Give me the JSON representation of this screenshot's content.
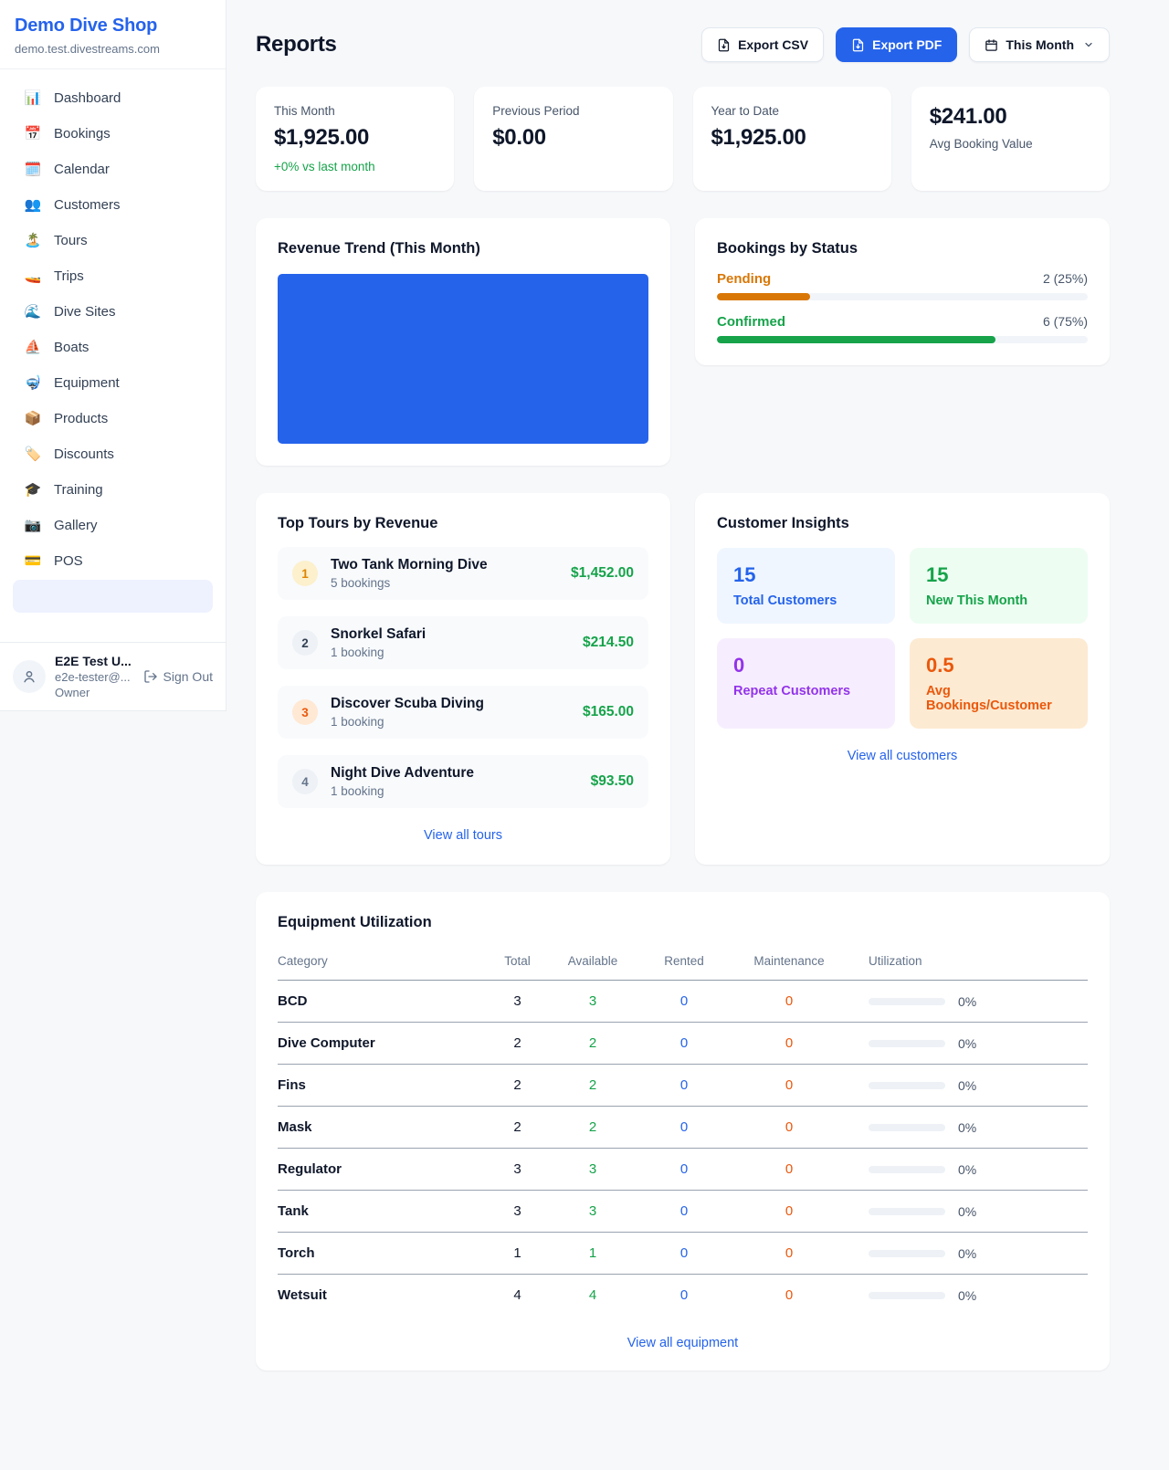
{
  "sidebar": {
    "shop_name": "Demo Dive Shop",
    "shop_domain": "demo.test.divestreams.com",
    "items": [
      {
        "label": "Dashboard",
        "icon": "📊",
        "item_name": "sidebar-item-dashboard",
        "icon_name": "bar-chart-icon"
      },
      {
        "label": "Bookings",
        "icon": "📅",
        "item_name": "sidebar-item-bookings",
        "icon_name": "calendar-date-icon"
      },
      {
        "label": "Calendar",
        "icon": "🗓️",
        "item_name": "sidebar-item-calendar",
        "icon_name": "calendar-icon"
      },
      {
        "label": "Customers",
        "icon": "👥",
        "item_name": "sidebar-item-customers",
        "icon_name": "people-icon"
      },
      {
        "label": "Tours",
        "icon": "🏝️",
        "item_name": "sidebar-item-tours",
        "icon_name": "island-icon"
      },
      {
        "label": "Trips",
        "icon": "🚤",
        "item_name": "sidebar-item-trips",
        "icon_name": "speedboat-icon"
      },
      {
        "label": "Dive Sites",
        "icon": "🌊",
        "item_name": "sidebar-item-dive-sites",
        "icon_name": "wave-icon"
      },
      {
        "label": "Boats",
        "icon": "⛵",
        "item_name": "sidebar-item-boats",
        "icon_name": "sailboat-icon"
      },
      {
        "label": "Equipment",
        "icon": "🤿",
        "item_name": "sidebar-item-equipment",
        "icon_name": "diving-mask-icon"
      },
      {
        "label": "Products",
        "icon": "📦",
        "item_name": "sidebar-item-products",
        "icon_name": "package-icon"
      },
      {
        "label": "Discounts",
        "icon": "🏷️",
        "item_name": "sidebar-item-discounts",
        "icon_name": "tag-icon"
      },
      {
        "label": "Training",
        "icon": "🎓",
        "item_name": "sidebar-item-training",
        "icon_name": "graduation-cap-icon"
      },
      {
        "label": "Gallery",
        "icon": "📷",
        "item_name": "sidebar-item-gallery",
        "icon_name": "camera-icon"
      },
      {
        "label": "POS",
        "icon": "💳",
        "item_name": "sidebar-item-pos",
        "icon_name": "credit-card-icon"
      }
    ],
    "user": {
      "name": "E2E Test U...",
      "email": "e2e-tester@...",
      "role": "Owner",
      "sign_out_label": "Sign Out"
    }
  },
  "header": {
    "title": "Reports",
    "export_csv_label": "Export CSV",
    "export_pdf_label": "Export PDF",
    "period_selector": "This Month"
  },
  "stats": {
    "this_month": {
      "label": "This Month",
      "value": "$1,925.00",
      "delta": "+0% vs last month"
    },
    "previous_period": {
      "label": "Previous Period",
      "value": "$0.00"
    },
    "year_to_date": {
      "label": "Year to Date",
      "value": "$1,925.00"
    },
    "avg_booking": {
      "label": "Avg Booking Value",
      "value": "$241.00"
    }
  },
  "revenue_trend": {
    "title": "Revenue Trend (This Month)"
  },
  "chart_data": {
    "type": "bar",
    "title": "Revenue Trend (This Month)",
    "series": [
      {
        "name": "Revenue",
        "values": [
          1925.0
        ]
      }
    ],
    "note": "single bar filling 100% of the plot area, no axes or labels visible",
    "bar_color": "#2563eb"
  },
  "bookings_by_status": {
    "title": "Bookings by Status",
    "rows": [
      {
        "label": "Pending",
        "count": "2 (25%)",
        "pct": 25,
        "color": "#d97706"
      },
      {
        "label": "Confirmed",
        "count": "6 (75%)",
        "pct": 75,
        "color": "#16a34a"
      }
    ]
  },
  "top_tours": {
    "title": "Top Tours by Revenue",
    "view_all": "View all tours",
    "items": [
      {
        "rank": "1",
        "name": "Two Tank Morning Dive",
        "bookings": "5 bookings",
        "revenue": "$1,452.00"
      },
      {
        "rank": "2",
        "name": "Snorkel Safari",
        "bookings": "1 booking",
        "revenue": "$214.50"
      },
      {
        "rank": "3",
        "name": "Discover Scuba Diving",
        "bookings": "1 booking",
        "revenue": "$165.00"
      },
      {
        "rank": "4",
        "name": "Night Dive Adventure",
        "bookings": "1 booking",
        "revenue": "$93.50"
      }
    ]
  },
  "customer_insights": {
    "title": "Customer Insights",
    "view_all": "View all customers",
    "tiles": [
      {
        "value": "15",
        "label": "Total Customers",
        "color": "#2563eb",
        "bg": "#eff6ff"
      },
      {
        "value": "15",
        "label": "New This Month",
        "color": "#16a34a",
        "bg": "#edfdf2"
      },
      {
        "value": "0",
        "label": "Repeat Customers",
        "color": "#9333ea",
        "bg": "#f6eefe"
      },
      {
        "value": "0.5",
        "label": "Avg Bookings/Customer",
        "color": "#ea580c",
        "bg": "#fdead2"
      }
    ]
  },
  "equipment": {
    "title": "Equipment Utilization",
    "view_all": "View all equipment",
    "columns": [
      "Category",
      "Total",
      "Available",
      "Rented",
      "Maintenance",
      "Utilization"
    ],
    "rows": [
      {
        "category": "BCD",
        "total": "3",
        "available": "3",
        "rented": "0",
        "maintenance": "0",
        "utilization_pct": 0,
        "utilization": "0%"
      },
      {
        "category": "Dive Computer",
        "total": "2",
        "available": "2",
        "rented": "0",
        "maintenance": "0",
        "utilization_pct": 0,
        "utilization": "0%"
      },
      {
        "category": "Fins",
        "total": "2",
        "available": "2",
        "rented": "0",
        "maintenance": "0",
        "utilization_pct": 0,
        "utilization": "0%"
      },
      {
        "category": "Mask",
        "total": "2",
        "available": "2",
        "rented": "0",
        "maintenance": "0",
        "utilization_pct": 0,
        "utilization": "0%"
      },
      {
        "category": "Regulator",
        "total": "3",
        "available": "3",
        "rented": "0",
        "maintenance": "0",
        "utilization_pct": 0,
        "utilization": "0%"
      },
      {
        "category": "Tank",
        "total": "3",
        "available": "3",
        "rented": "0",
        "maintenance": "0",
        "utilization_pct": 0,
        "utilization": "0%"
      },
      {
        "category": "Torch",
        "total": "1",
        "available": "1",
        "rented": "0",
        "maintenance": "0",
        "utilization_pct": 0,
        "utilization": "0%"
      },
      {
        "category": "Wetsuit",
        "total": "4",
        "available": "4",
        "rented": "0",
        "maintenance": "0",
        "utilization_pct": 0,
        "utilization": "0%"
      }
    ]
  },
  "colors": {
    "accent": "#2563eb",
    "success": "#16a34a",
    "warning": "#d97706",
    "danger": "#ea580c",
    "purple": "#9333ea"
  }
}
